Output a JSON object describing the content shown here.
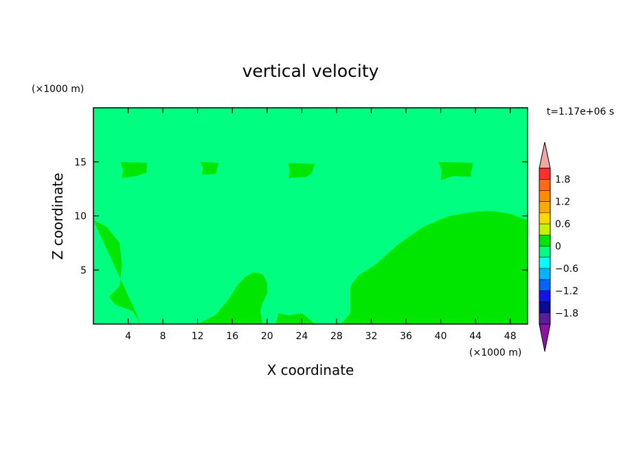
{
  "chart_data": {
    "type": "heatmap",
    "title": "vertical velocity",
    "xlabel": "X coordinate",
    "ylabel": "Z coordinate",
    "x_unit_label": "(×1000 m)",
    "y_unit_label": "(×1000 m)",
    "time_label": "t=1.17e+06 s",
    "xlim": [
      0,
      50
    ],
    "ylim": [
      0,
      20
    ],
    "x_ticks": [
      4,
      8,
      12,
      16,
      20,
      24,
      28,
      32,
      36,
      40,
      44,
      48
    ],
    "y_ticks": [
      5,
      10,
      15
    ],
    "background_level": "0 to 0.3",
    "colors": {
      "background_field": "#00ff80",
      "positive_region": "#00e600",
      "axis": "#000000"
    },
    "colorbar": {
      "tick_labels": [
        "1.8",
        "1.2",
        "0.6",
        "0",
        "−0.6",
        "−1.2",
        "−1.8"
      ],
      "tick_values": [
        1.8,
        1.2,
        0.6,
        0,
        -0.6,
        -1.2,
        -1.8
      ],
      "range": [
        -2.1,
        2.1
      ],
      "bands": [
        {
          "lo": 1.8,
          "hi": 2.1,
          "color": "#ff3030"
        },
        {
          "lo": 1.5,
          "hi": 1.8,
          "color": "#ff6a1a"
        },
        {
          "lo": 1.2,
          "hi": 1.5,
          "color": "#ff8a00"
        },
        {
          "lo": 0.9,
          "hi": 1.2,
          "color": "#ffaa00"
        },
        {
          "lo": 0.6,
          "hi": 0.9,
          "color": "#ffd700"
        },
        {
          "lo": 0.3,
          "hi": 0.6,
          "color": "#c8f000"
        },
        {
          "lo": 0.0,
          "hi": 0.3,
          "color": "#00e600"
        },
        {
          "lo": -0.3,
          "hi": 0.0,
          "color": "#00ff80"
        },
        {
          "lo": -0.6,
          "hi": -0.3,
          "color": "#00ffff"
        },
        {
          "lo": -0.9,
          "hi": -0.6,
          "color": "#00b4ff"
        },
        {
          "lo": -1.2,
          "hi": -0.9,
          "color": "#0064ff"
        },
        {
          "lo": -1.5,
          "hi": -1.2,
          "color": "#1414e6"
        },
        {
          "lo": -1.8,
          "hi": -1.5,
          "color": "#0a0a96"
        },
        {
          "lo": -2.1,
          "hi": -1.8,
          "color": "#5a1e9c"
        }
      ],
      "over_color": "#f4a6a6",
      "under_color": "#8c12a8"
    },
    "positive_regions": [
      {
        "name": "left-lobe",
        "points": [
          [
            0,
            9.6
          ],
          [
            1.5,
            9
          ],
          [
            3,
            7.5
          ],
          [
            3.3,
            5.5
          ],
          [
            3,
            3.5
          ],
          [
            1.8,
            2.5
          ],
          [
            2.5,
            1.8
          ],
          [
            4.5,
            1.2
          ],
          [
            5.5,
            0
          ]
        ]
      },
      {
        "name": "center-lobe",
        "points": [
          [
            12,
            0
          ],
          [
            14,
            0.8
          ],
          [
            15.5,
            2.2
          ],
          [
            16.5,
            3.5
          ],
          [
            17.5,
            4.4
          ],
          [
            18.5,
            4.8
          ],
          [
            19.5,
            4.6
          ],
          [
            20,
            3.8
          ],
          [
            20,
            2.8
          ],
          [
            19.5,
            2
          ],
          [
            19.2,
            1.2
          ],
          [
            19.5,
            0
          ]
        ]
      },
      {
        "name": "center-bumps",
        "points": [
          [
            21,
            0
          ],
          [
            21.3,
            1
          ],
          [
            22.5,
            0.8
          ],
          [
            24,
            1
          ],
          [
            24.5,
            0.7
          ],
          [
            25.5,
            0
          ]
        ]
      },
      {
        "name": "right-lobe",
        "points": [
          [
            28.5,
            0
          ],
          [
            29.6,
            1
          ],
          [
            29.6,
            3.5
          ],
          [
            30.5,
            4.5
          ],
          [
            32.5,
            5.5
          ],
          [
            35,
            7.3
          ],
          [
            38,
            9
          ],
          [
            41,
            10
          ],
          [
            44,
            10.4
          ],
          [
            46,
            10.45
          ],
          [
            48,
            10.2
          ],
          [
            50,
            9.6
          ],
          [
            50,
            0
          ]
        ]
      },
      {
        "name": "upper-blob-1",
        "points": [
          [
            3.1,
            15
          ],
          [
            6.2,
            14.9
          ],
          [
            6.1,
            14
          ],
          [
            5,
            13.7
          ],
          [
            3.3,
            13.5
          ],
          [
            3.4,
            14.3
          ]
        ]
      },
      {
        "name": "upper-blob-2",
        "points": [
          [
            12.3,
            15
          ],
          [
            14.4,
            14.9
          ],
          [
            14.1,
            13.9
          ],
          [
            12.5,
            13.8
          ],
          [
            12.6,
            14.5
          ]
        ]
      },
      {
        "name": "upper-blob-3",
        "points": [
          [
            22.4,
            14.9
          ],
          [
            25.5,
            14.8
          ],
          [
            25.1,
            13.9
          ],
          [
            24.5,
            13.6
          ],
          [
            22.5,
            13.5
          ],
          [
            22.6,
            14.3
          ]
        ]
      },
      {
        "name": "upper-blob-4",
        "points": [
          [
            39.7,
            15
          ],
          [
            43.7,
            14.9
          ],
          [
            43.5,
            14
          ],
          [
            43.5,
            13.6
          ],
          [
            41.5,
            13.7
          ],
          [
            40,
            13.3
          ],
          [
            40.1,
            14.2
          ]
        ]
      }
    ]
  }
}
